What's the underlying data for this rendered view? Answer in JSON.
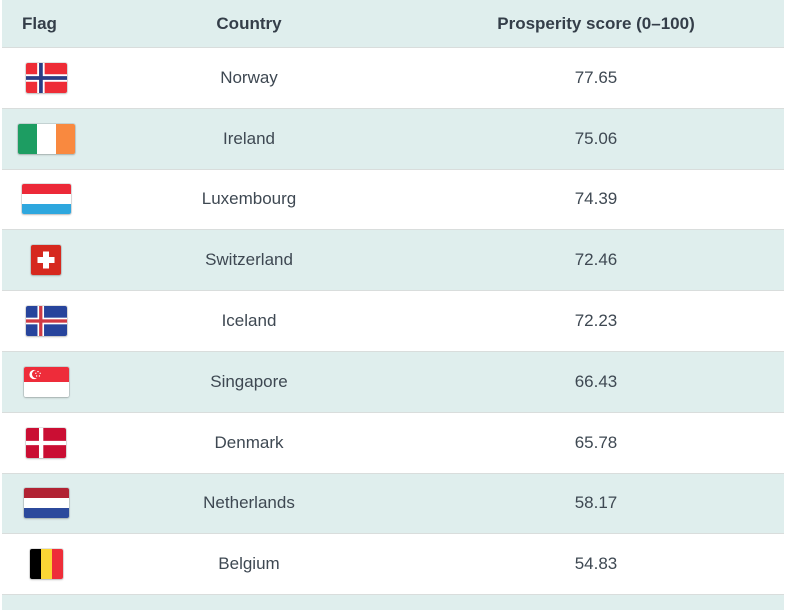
{
  "chart_data": {
    "type": "table",
    "columns": [
      "Flag",
      "Country",
      "Prosperity score (0–100)"
    ],
    "score_range": [
      0,
      100
    ],
    "rows": [
      {
        "flag": "flag-norway-icon",
        "country": "Norway",
        "score": 77.65
      },
      {
        "flag": "flag-ireland-icon",
        "country": "Ireland",
        "score": 75.06
      },
      {
        "flag": "flag-luxembourg-icon",
        "country": "Luxembourg",
        "score": 74.39
      },
      {
        "flag": "flag-switzerland-icon",
        "country": "Switzerland",
        "score": 72.46
      },
      {
        "flag": "flag-iceland-icon",
        "country": "Iceland",
        "score": 72.23
      },
      {
        "flag": "flag-singapore-icon",
        "country": "Singapore",
        "score": 66.43
      },
      {
        "flag": "flag-denmark-icon",
        "country": "Denmark",
        "score": 65.78
      },
      {
        "flag": "flag-netherlands-icon",
        "country": "Netherlands",
        "score": 58.17
      },
      {
        "flag": "flag-belgium-icon",
        "country": "Belgium",
        "score": 54.83
      }
    ]
  },
  "colors": {
    "header_bg": "#dfeeed",
    "row_alt_bg": "#dfeeed",
    "row_bg": "#ffffff",
    "row_border": "#d9dddc",
    "header_text": "#343e49",
    "body_text": "#3e4852"
  }
}
